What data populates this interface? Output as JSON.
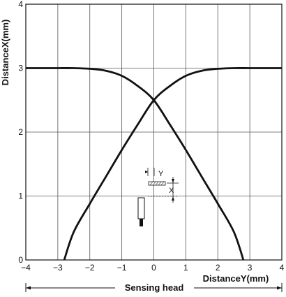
{
  "chart_data": {
    "type": "line",
    "xlabel": "DistanceY(mm)",
    "ylabel": "DistanceX(mm)",
    "footer_label": "Sensing head",
    "xlim": [
      -4,
      4
    ],
    "ylim": [
      0,
      4
    ],
    "xticks": [
      -4,
      -3,
      -2,
      -1,
      0,
      1,
      2,
      3,
      4
    ],
    "yticks": [
      0,
      1,
      2,
      3,
      4
    ],
    "xtick_labels": [
      "−4",
      "−3",
      "−2",
      "−1",
      "0",
      "1",
      "2",
      "3",
      "4"
    ],
    "ytick_labels": [
      "0",
      "1",
      "2",
      "3",
      "4"
    ],
    "grid": true,
    "legend": "none",
    "line_color": "#111111",
    "series": [
      {
        "x": [
          -4,
          -3.5,
          -3,
          -2.5,
          -2,
          -1.5,
          -1,
          -0.5,
          0,
          0.5,
          1,
          1.5,
          2,
          2.5,
          2.8
        ],
        "y": [
          3.0,
          3.0,
          3.0,
          3.0,
          2.99,
          2.96,
          2.88,
          2.72,
          2.5,
          2.12,
          1.72,
          1.3,
          0.88,
          0.44,
          0.0
        ]
      },
      {
        "x": [
          -2.8,
          -2.5,
          -2,
          -1.5,
          -1,
          -0.5,
          0,
          0.5,
          1,
          1.5,
          2,
          2.5,
          3,
          3.5,
          4
        ],
        "y": [
          0.0,
          0.44,
          0.88,
          1.3,
          1.72,
          2.12,
          2.5,
          2.72,
          2.88,
          2.96,
          2.99,
          3.0,
          3.0,
          3.0,
          3.0
        ]
      }
    ],
    "inset_labels": {
      "y": "Y",
      "x": "X"
    }
  }
}
